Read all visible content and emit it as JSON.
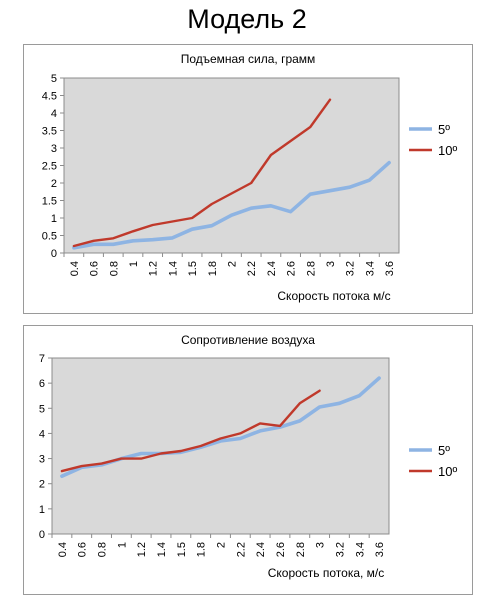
{
  "page": {
    "title": "Модель 2"
  },
  "chart_data": [
    {
      "type": "line",
      "title": "Подъемная сила, грамм",
      "xlabel": "Скорость потока м/с",
      "ylabel": "",
      "ylim": [
        0,
        5
      ],
      "yticks": [
        "0",
        "0.5",
        "1",
        "1.5",
        "2",
        "2.5",
        "3",
        "3.5",
        "4",
        "4.5",
        "5"
      ],
      "categories": [
        "0.4",
        "0.6",
        "0.8",
        "1",
        "1.2",
        "1.4",
        "1.5",
        "1.8",
        "2",
        "2.2",
        "2.4",
        "2.6",
        "2.8",
        "3",
        "3.2",
        "3.4",
        "3.6"
      ],
      "grid": false,
      "legend_position": "right",
      "series": [
        {
          "name": "5º",
          "color": "#8eb4e3",
          "values": [
            0.15,
            0.25,
            0.25,
            0.35,
            0.38,
            0.43,
            0.68,
            0.78,
            1.08,
            1.28,
            1.35,
            1.18,
            1.68,
            1.78,
            1.88,
            2.08,
            2.58
          ]
        },
        {
          "name": "10º",
          "color": "#c0392b",
          "values": [
            0.2,
            0.35,
            0.42,
            0.62,
            0.8,
            0.9,
            1.0,
            1.4,
            1.7,
            2.0,
            2.8,
            3.2,
            3.6,
            4.38,
            null,
            null,
            null
          ]
        }
      ]
    },
    {
      "type": "line",
      "title": "Сопротивление воздуха",
      "xlabel": "Скорость потока, м/с",
      "ylabel": "",
      "ylim": [
        0,
        7
      ],
      "yticks": [
        "0",
        "1",
        "2",
        "3",
        "4",
        "5",
        "6",
        "7"
      ],
      "categories": [
        "0.4",
        "0.6",
        "0.8",
        "1",
        "1.2",
        "1.4",
        "1.5",
        "1.8",
        "2",
        "2.2",
        "2.4",
        "2.6",
        "2.8",
        "3",
        "3.2",
        "3.4",
        "3.6"
      ],
      "grid": false,
      "legend_position": "right",
      "series": [
        {
          "name": "5º",
          "color": "#8eb4e3",
          "values": [
            2.3,
            2.65,
            2.75,
            3.0,
            3.2,
            3.2,
            3.25,
            3.45,
            3.7,
            3.8,
            4.1,
            4.25,
            4.5,
            5.05,
            5.2,
            5.5,
            6.2
          ]
        },
        {
          "name": "10º",
          "color": "#c0392b",
          "values": [
            2.5,
            2.7,
            2.8,
            3.0,
            3.0,
            3.2,
            3.3,
            3.5,
            3.8,
            4.0,
            4.4,
            4.3,
            5.2,
            5.7,
            null,
            null,
            null
          ]
        }
      ]
    }
  ]
}
